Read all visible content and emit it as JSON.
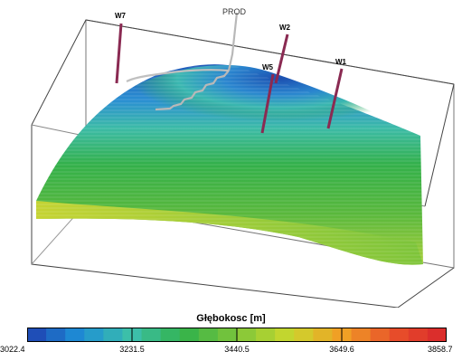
{
  "wells": [
    {
      "id": "w7",
      "label": "W7"
    },
    {
      "id": "prod",
      "label": "PROD"
    },
    {
      "id": "w2",
      "label": "W2"
    },
    {
      "id": "w5",
      "label": "W5"
    },
    {
      "id": "w1",
      "label": "W1"
    }
  ],
  "colorbar": {
    "title": "Głębokosc [m]",
    "ticks": [
      "3022.4",
      "3231.5",
      "3440.5",
      "3649.6",
      "3858.7"
    ],
    "colors": [
      "#1f3fb0",
      "#1e8fd6",
      "#3cbfa9",
      "#33b24a",
      "#7fc63a",
      "#c9d82e",
      "#f0a025",
      "#e8502a",
      "#d8262c"
    ]
  },
  "colors": {
    "well_pipe": "#8a2a52",
    "prod_pipe": "#a0a0a0",
    "frame": "#444444"
  }
}
